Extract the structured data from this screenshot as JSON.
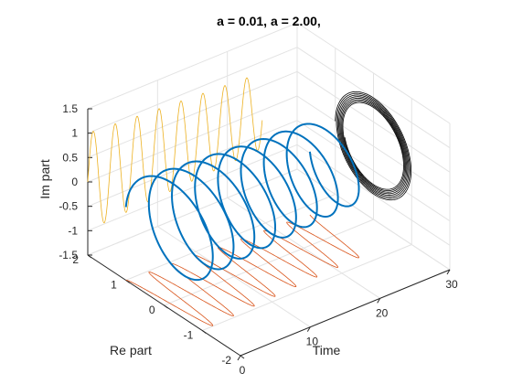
{
  "chart_data": {
    "type": "line",
    "title": "a = 0.01, a = 2.00,",
    "xlabel": "Time",
    "ylabel": "Re part",
    "zlabel": "Im part",
    "xlim": [
      0,
      30
    ],
    "ylim": [
      -2,
      2
    ],
    "zlim": [
      -1.5,
      1.5
    ],
    "xticks": [
      "0",
      "10",
      "20",
      "30"
    ],
    "yticks": [
      "-2",
      "-1",
      "0",
      "1",
      "2"
    ],
    "zticks": [
      "-1.5",
      "-1",
      "-0.5",
      "0",
      "0.5",
      "1",
      "1.5"
    ],
    "grid": true,
    "curve": {
      "t_start": 0,
      "t_end": 25,
      "decay_rate": 0.01,
      "angular_frequency": 2.0,
      "amplitude": 1.0
    },
    "series": [
      {
        "kind": "3d-spiral",
        "color": "#0072BD"
      },
      {
        "kind": "projection-on-re-time",
        "color": "#D95319"
      },
      {
        "kind": "projection-on-im-time",
        "color": "#EDB120"
      },
      {
        "kind": "projection-on-re-im",
        "color": "#000000"
      }
    ]
  }
}
